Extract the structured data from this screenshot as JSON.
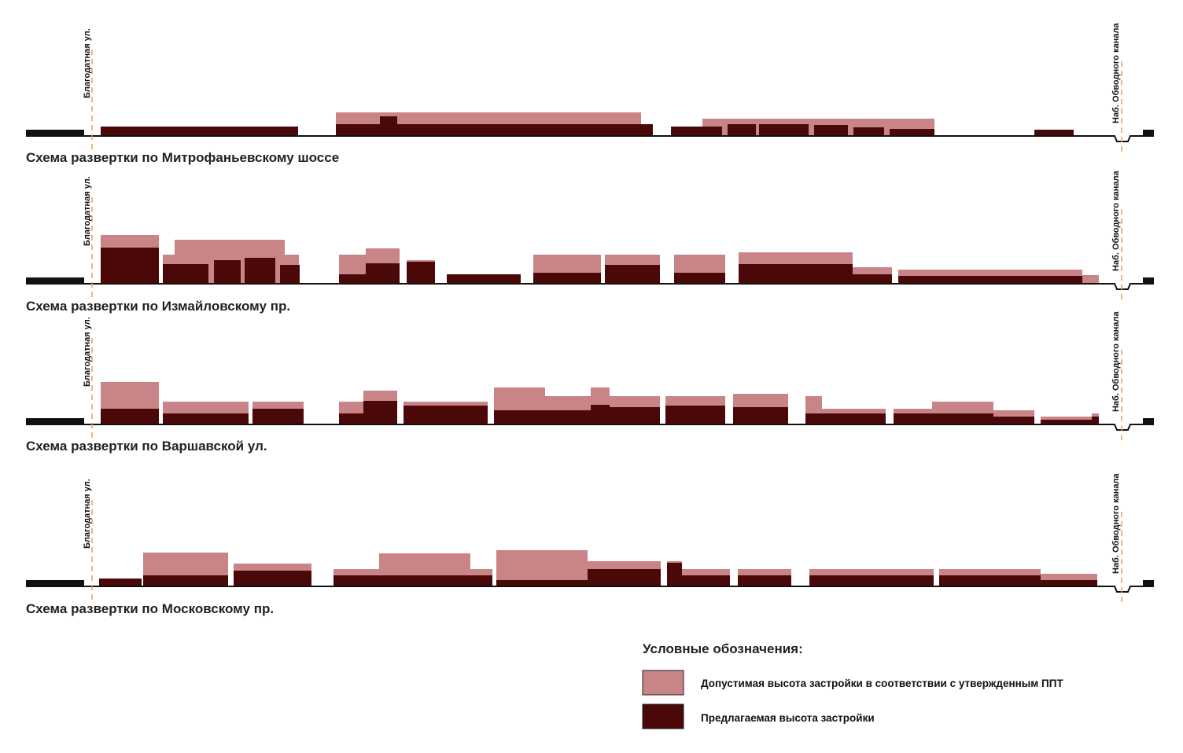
{
  "sections": [
    {
      "title": "Схема развертки по Митрофаньевскому шоссе",
      "left_label": "Благодатная ул.",
      "right_label": "Наб. Обводного канала"
    },
    {
      "title": "Схема развертки по Измайловскому пр.",
      "left_label": "Благодатная ул.",
      "right_label": "Наб. Обводного канала"
    },
    {
      "title": "Схема развертки по Варшавской ул.",
      "left_label": "Благодатная ул.",
      "right_label": "Наб. Обводного канала"
    },
    {
      "title": "Схема развертки по Московскому пр.",
      "left_label": "Благодатная ул.",
      "right_label": "Наб. Обводного канала"
    }
  ],
  "legend": {
    "title": "Условные обозначения:",
    "items": [
      {
        "label": "Допустимая высота застройки в соответствии с утвержденным ППТ"
      },
      {
        "label": "Предлагаемая высота застройки"
      }
    ]
  }
}
